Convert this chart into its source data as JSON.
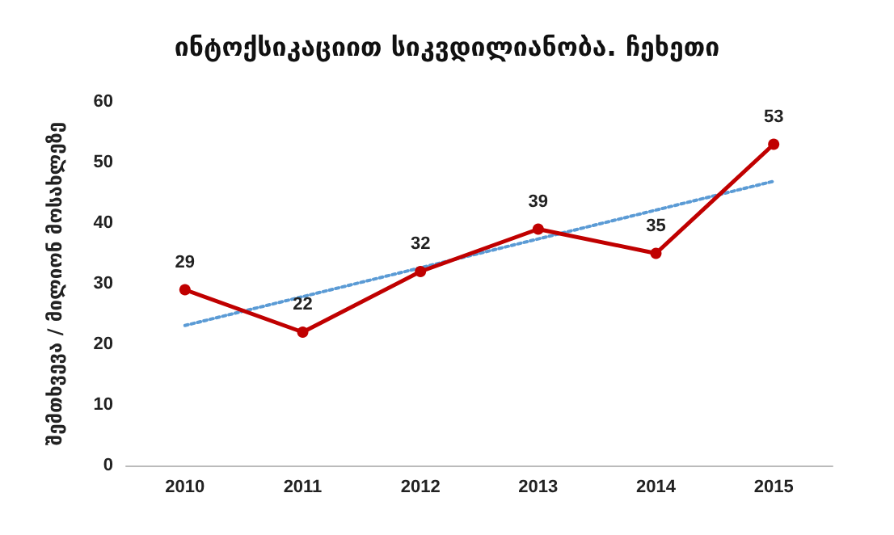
{
  "chart_data": {
    "type": "line",
    "title": "ინტოქსიკაციით სიკვდილიანობა. ჩეხეთი",
    "ylabel": "შემთხვევა / მილიონ მოსახლეზე",
    "categories": [
      "2010",
      "2011",
      "2012",
      "2013",
      "2014",
      "2015"
    ],
    "ylim": [
      0,
      60
    ],
    "yticks": [
      0,
      10,
      20,
      30,
      40,
      50,
      60
    ],
    "grid": false,
    "marker": "circle",
    "series": [
      {
        "color": "#c00000",
        "values": [
          29,
          22,
          32,
          39,
          35,
          53
        ],
        "data_labels": true
      },
      {
        "type": "line",
        "color": "#5b9bd5",
        "line_style": "dotted",
        "marker": "none",
        "values": [
          23.1,
          null,
          null,
          null,
          null,
          46.9
        ]
      }
    ]
  }
}
